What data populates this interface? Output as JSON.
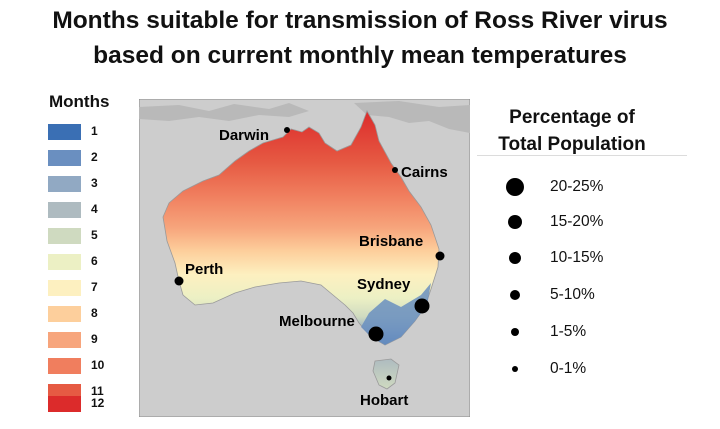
{
  "title": {
    "line1": "Months suitable for transmission of Ross River virus",
    "line2": "based on current monthly mean temperatures"
  },
  "legend": {
    "title": "Months",
    "items": [
      {
        "label": "1",
        "color": "#3a6fb4"
      },
      {
        "label": "2",
        "color": "#6a8fc0"
      },
      {
        "label": "3",
        "color": "#91a9c3"
      },
      {
        "label": "4",
        "color": "#aebbc0"
      },
      {
        "label": "5",
        "color": "#cfdac0"
      },
      {
        "label": "6",
        "color": "#ecf0c4"
      },
      {
        "label": "7",
        "color": "#fdf0c0"
      },
      {
        "label": "8",
        "color": "#fdcf9c"
      },
      {
        "label": "9",
        "color": "#f7a57c"
      },
      {
        "label": "10",
        "color": "#f07e5e"
      },
      {
        "label": "11",
        "color": "#e65a43"
      },
      {
        "label": "12",
        "color": "#dc2b2b"
      }
    ]
  },
  "cities": [
    {
      "name": "Darwin"
    },
    {
      "name": "Cairns"
    },
    {
      "name": "Brisbane"
    },
    {
      "name": "Perth"
    },
    {
      "name": "Sydney"
    },
    {
      "name": "Melbourne"
    },
    {
      "name": "Hobart"
    }
  ],
  "population_legend": {
    "title_line1": "Percentage of",
    "title_line2": "Total Population",
    "items": [
      {
        "label": "20-25%"
      },
      {
        "label": "15-20%"
      },
      {
        "label": "10-15%"
      },
      {
        "label": "5-10%"
      },
      {
        "label": "1-5%"
      },
      {
        "label": "0-1%"
      }
    ]
  }
}
